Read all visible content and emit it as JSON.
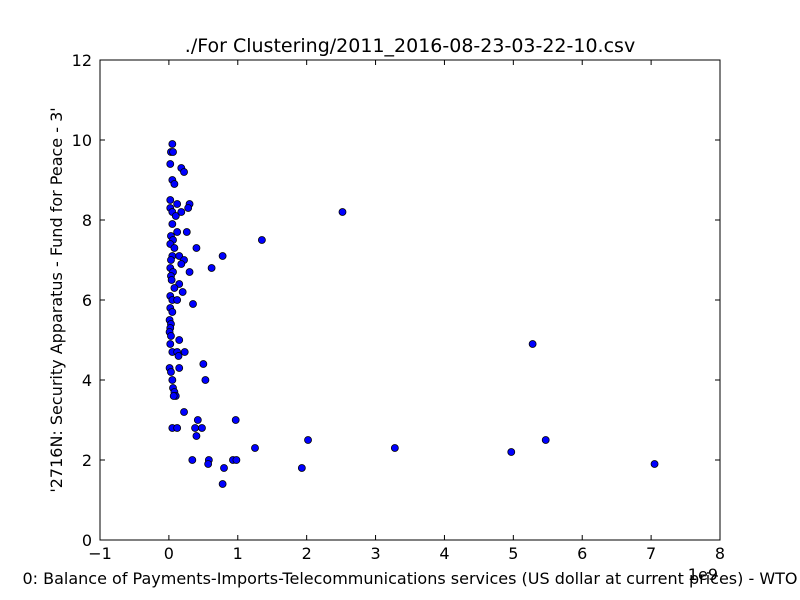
{
  "chart_data": {
    "type": "scatter",
    "title": "./For Clustering/2011_2016-08-23-03-22-10.csv",
    "xlabel": "0: Balance of Payments-Imports-Telecommunications services (US dollar at current prices) - WTO",
    "ylabel": "'2716N: Security Apparatus - Fund for Peace - 3'",
    "x_offset_label": "1e9",
    "xlim": [
      -1,
      8
    ],
    "ylim": [
      0,
      12
    ],
    "x_ticks": [
      "−1",
      "0",
      "1",
      "2",
      "3",
      "4",
      "5",
      "6",
      "7",
      "8"
    ],
    "y_ticks": [
      "0",
      "2",
      "4",
      "6",
      "8",
      "10",
      "12"
    ],
    "grid": false,
    "marker_color": "#0000ff",
    "points": [
      [
        0.05,
        9.9
      ],
      [
        0.03,
        9.7
      ],
      [
        0.06,
        9.7
      ],
      [
        0.02,
        9.4
      ],
      [
        0.18,
        9.3
      ],
      [
        0.22,
        9.2
      ],
      [
        0.05,
        9.0
      ],
      [
        0.08,
        8.9
      ],
      [
        0.02,
        8.5
      ],
      [
        0.12,
        8.4
      ],
      [
        0.3,
        8.4
      ],
      [
        0.28,
        8.3
      ],
      [
        0.02,
        8.3
      ],
      [
        0.05,
        8.2
      ],
      [
        0.1,
        8.1
      ],
      [
        0.18,
        8.2
      ],
      [
        0.05,
        7.9
      ],
      [
        0.12,
        7.7
      ],
      [
        0.26,
        7.7
      ],
      [
        0.03,
        7.6
      ],
      [
        0.06,
        7.5
      ],
      [
        0.02,
        7.4
      ],
      [
        0.08,
        7.3
      ],
      [
        0.4,
        7.3
      ],
      [
        0.05,
        7.1
      ],
      [
        0.15,
        7.1
      ],
      [
        0.78,
        7.1
      ],
      [
        0.03,
        7.0
      ],
      [
        0.22,
        7.0
      ],
      [
        0.18,
        6.9
      ],
      [
        0.02,
        6.8
      ],
      [
        0.62,
        6.8
      ],
      [
        0.06,
        6.7
      ],
      [
        0.3,
        6.7
      ],
      [
        0.03,
        6.6
      ],
      [
        0.04,
        6.5
      ],
      [
        0.15,
        6.4
      ],
      [
        0.08,
        6.3
      ],
      [
        0.2,
        6.2
      ],
      [
        0.02,
        6.1
      ],
      [
        0.05,
        6.0
      ],
      [
        0.12,
        6.0
      ],
      [
        0.35,
        5.9
      ],
      [
        0.02,
        5.8
      ],
      [
        0.05,
        5.7
      ],
      [
        0.01,
        5.5
      ],
      [
        0.03,
        5.4
      ],
      [
        0.02,
        5.3
      ],
      [
        0.01,
        5.2
      ],
      [
        0.03,
        5.1
      ],
      [
        0.15,
        5.0
      ],
      [
        0.02,
        4.9
      ],
      [
        0.05,
        4.7
      ],
      [
        0.12,
        4.7
      ],
      [
        0.23,
        4.7
      ],
      [
        0.14,
        4.6
      ],
      [
        0.5,
        4.4
      ],
      [
        0.15,
        4.3
      ],
      [
        0.01,
        4.3
      ],
      [
        0.03,
        4.2
      ],
      [
        0.05,
        4.0
      ],
      [
        0.53,
        4.0
      ],
      [
        0.06,
        3.8
      ],
      [
        0.08,
        3.7
      ],
      [
        0.1,
        3.6
      ],
      [
        0.07,
        3.6
      ],
      [
        0.22,
        3.2
      ],
      [
        0.42,
        3.0
      ],
      [
        0.97,
        3.0
      ],
      [
        0.05,
        2.8
      ],
      [
        0.12,
        2.8
      ],
      [
        0.38,
        2.8
      ],
      [
        0.48,
        2.8
      ],
      [
        0.4,
        2.6
      ],
      [
        2.02,
        2.5
      ],
      [
        5.47,
        2.5
      ],
      [
        1.25,
        2.3
      ],
      [
        3.28,
        2.3
      ],
      [
        4.97,
        2.2
      ],
      [
        0.34,
        2.0
      ],
      [
        0.58,
        2.0
      ],
      [
        0.93,
        2.0
      ],
      [
        0.98,
        2.0
      ],
      [
        0.57,
        1.9
      ],
      [
        7.05,
        1.9
      ],
      [
        0.8,
        1.8
      ],
      [
        1.93,
        1.8
      ],
      [
        0.78,
        1.4
      ],
      [
        2.52,
        8.2
      ],
      [
        1.35,
        7.5
      ],
      [
        5.28,
        4.9
      ]
    ]
  }
}
